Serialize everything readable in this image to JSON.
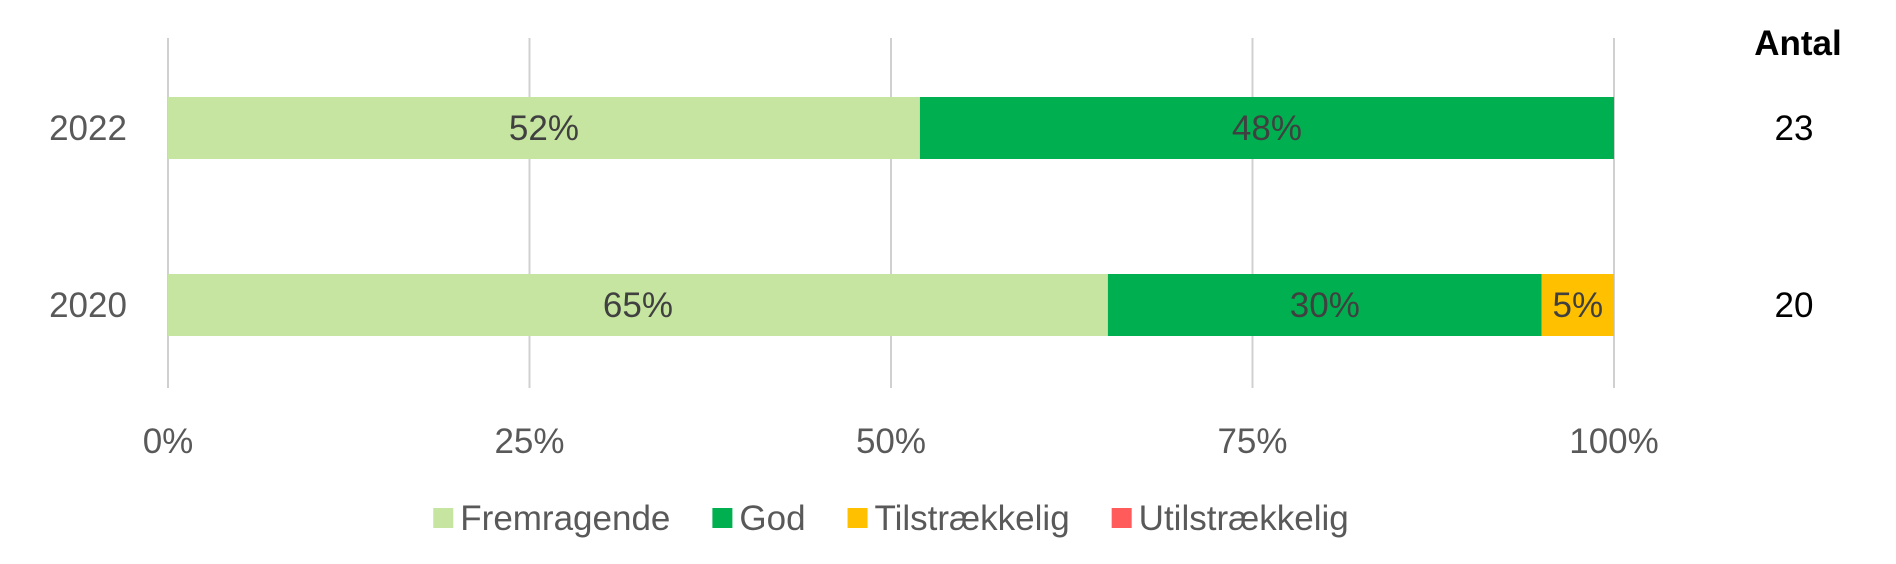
{
  "chart_data": {
    "type": "bar",
    "orientation": "horizontal",
    "stacked": "percent",
    "categories": [
      "2022",
      "2020"
    ],
    "series": [
      {
        "name": "Fremragende",
        "values": [
          52,
          65
        ],
        "labels": [
          "52%",
          "65%"
        ],
        "color": "#c5e5a0"
      },
      {
        "name": "God",
        "values": [
          48,
          30
        ],
        "labels": [
          "48%",
          "30%"
        ],
        "color": "#00b050"
      },
      {
        "name": "Tilstrækkelig",
        "values": [
          0,
          5
        ],
        "labels": [
          "",
          "5%"
        ],
        "color": "#ffc000"
      },
      {
        "name": "Utilstrækkelig",
        "values": [
          0,
          0
        ],
        "labels": [
          "",
          ""
        ],
        "color": "#ff5b5b"
      }
    ],
    "xlim": [
      0,
      100
    ],
    "xticks": [
      "0%",
      "25%",
      "50%",
      "75%",
      "100%"
    ],
    "grid": true,
    "legend_position": "bottom",
    "count_header": "Antal",
    "counts": [
      "23",
      "20"
    ]
  }
}
